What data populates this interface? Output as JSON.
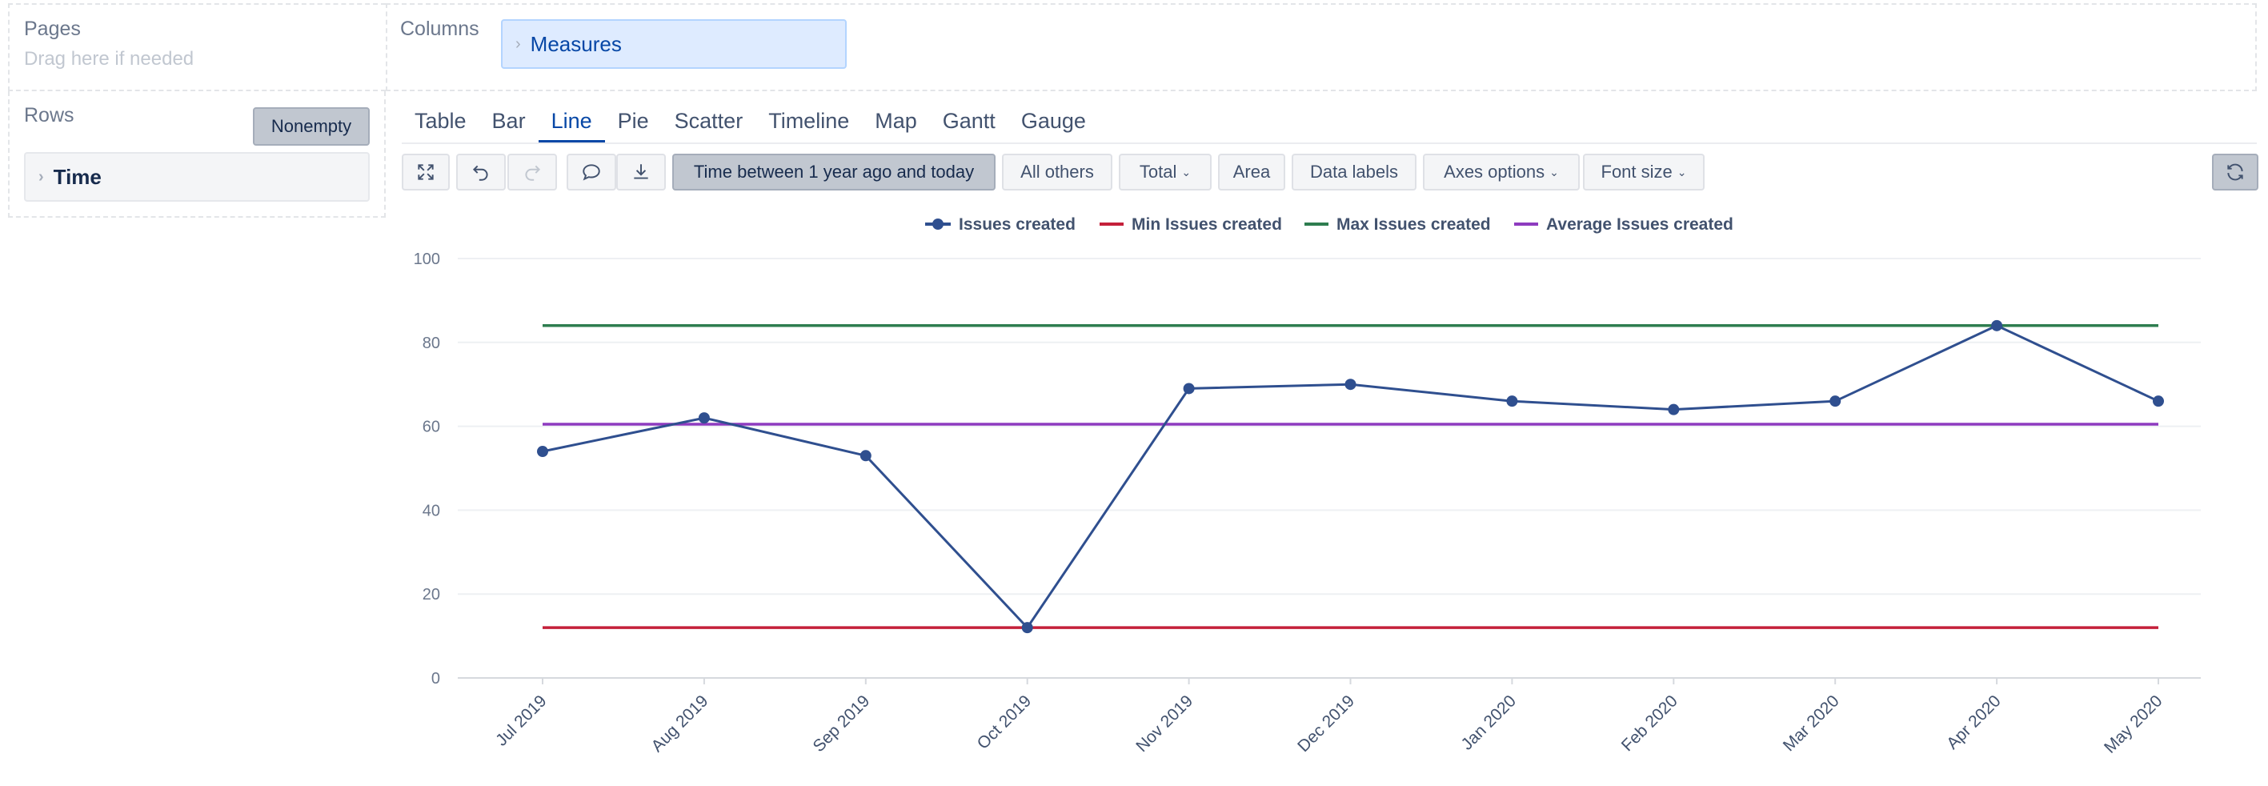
{
  "pages": {
    "title": "Pages",
    "placeholder": "Drag here if needed"
  },
  "columns": {
    "title": "Columns",
    "chip_label": "Measures"
  },
  "rows": {
    "title": "Rows",
    "nonempty_label": "Nonempty",
    "chip_label": "Time"
  },
  "chart_tabs": [
    "Table",
    "Bar",
    "Line",
    "Pie",
    "Scatter",
    "Timeline",
    "Map",
    "Gantt",
    "Gauge"
  ],
  "active_tab": "Line",
  "toolbar": {
    "icons": [
      "fullscreen-icon",
      "undo-icon",
      "redo-icon",
      "comment-icon",
      "download-icon",
      "refresh-icon"
    ],
    "time_filter": "Time between 1 year ago and today",
    "all_others": "All others",
    "total": "Total",
    "area": "Area",
    "data_labels": "Data labels",
    "axes_options": "Axes options",
    "font_size": "Font size"
  },
  "colors": {
    "accent": "#0747a6",
    "issues": "#2f4f8f",
    "min": "#c4203a",
    "max": "#2e7d4f",
    "avg": "#8e3bbf"
  },
  "chart_data": {
    "type": "line",
    "categories": [
      "Jul 2019",
      "Aug 2019",
      "Sep 2019",
      "Oct 2019",
      "Nov 2019",
      "Dec 2019",
      "Jan 2020",
      "Feb 2020",
      "Mar 2020",
      "Apr 2020",
      "May 2020"
    ],
    "series": [
      {
        "name": "Issues created",
        "values": [
          54,
          62,
          53,
          12,
          69,
          70,
          66,
          64,
          66,
          84,
          66
        ],
        "markers": true
      },
      {
        "name": "Min Issues created",
        "values": [
          12,
          12,
          12,
          12,
          12,
          12,
          12,
          12,
          12,
          12,
          12
        ],
        "markers": false
      },
      {
        "name": "Max Issues created",
        "values": [
          84,
          84,
          84,
          84,
          84,
          84,
          84,
          84,
          84,
          84,
          84
        ],
        "markers": false
      },
      {
        "name": "Average Issues created",
        "values": [
          60.5,
          60.5,
          60.5,
          60.5,
          60.5,
          60.5,
          60.5,
          60.5,
          60.5,
          60.5,
          60.5
        ],
        "markers": false
      }
    ],
    "y_ticks": [
      0,
      20,
      40,
      60,
      80,
      100
    ],
    "ylim": [
      0,
      100
    ],
    "grid": true,
    "legend_position": "top-center"
  }
}
